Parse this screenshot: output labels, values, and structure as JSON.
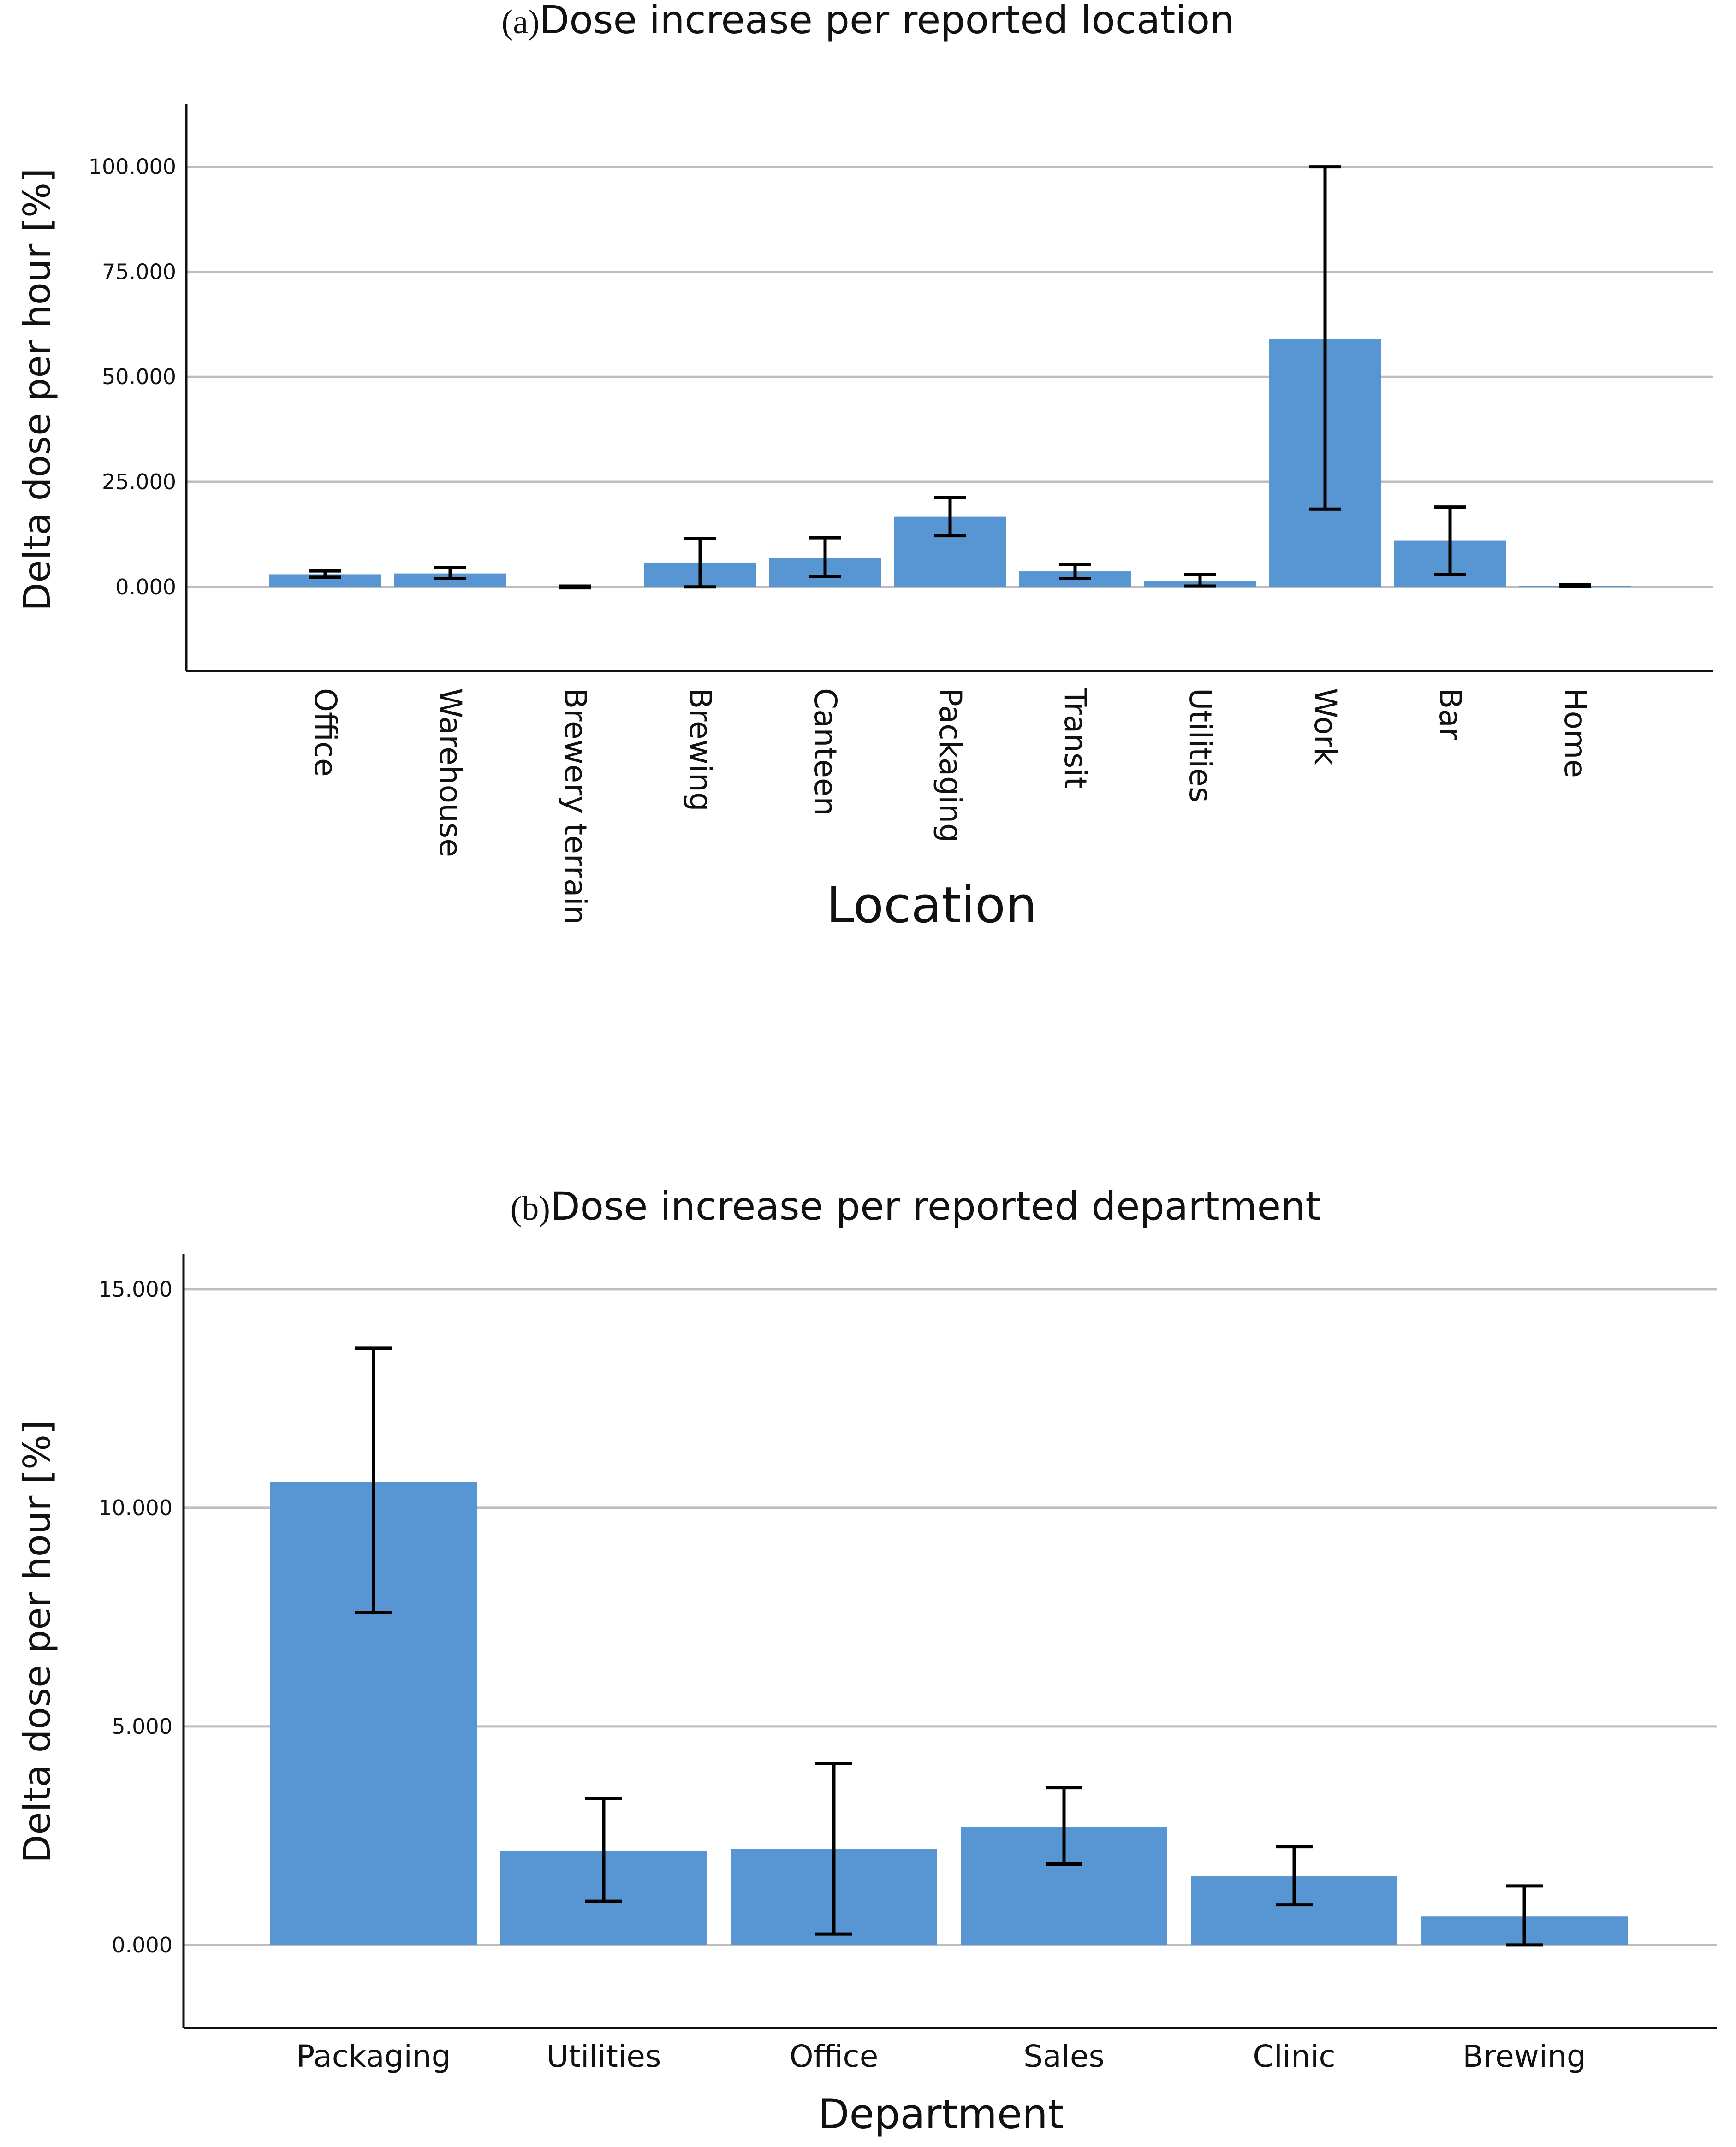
{
  "chart_data": [
    {
      "id": "a",
      "type": "bar",
      "panel_label": "(a)",
      "title": "Dose increase per reported location",
      "xlabel": "Location",
      "ylabel": "Delta dose per hour [%]",
      "ylim": [
        -20,
        115
      ],
      "yticks": [
        0,
        25,
        50,
        75,
        100
      ],
      "ytick_labels": [
        "0.000",
        "25.000",
        "50.000",
        "75.000",
        "100.000"
      ],
      "grid": true,
      "bar_color": "#5796d2",
      "categories": [
        "Office",
        "Warehouse",
        "Brewery terrain",
        "Brewing",
        "Canteen",
        "Packaging",
        "Transit",
        "Utilities",
        "Work",
        "Bar",
        "Home"
      ],
      "values": [
        3.0,
        3.2,
        0.0,
        5.8,
        7.0,
        16.7,
        3.7,
        1.5,
        59.0,
        11.0,
        0.3
      ],
      "error_low": [
        2.3,
        2.0,
        -0.2,
        0.0,
        2.5,
        12.2,
        2.0,
        0.2,
        18.5,
        3.0,
        0.1
      ],
      "error_high": [
        3.8,
        4.6,
        0.2,
        11.5,
        11.7,
        21.3,
        5.4,
        3.0,
        100.0,
        19.0,
        0.5
      ]
    },
    {
      "id": "b",
      "type": "bar",
      "panel_label": "(b)",
      "title": "Dose increase per reported department",
      "xlabel": "Department",
      "ylabel": "Delta dose per hour [%]",
      "ylim": [
        -1.9,
        15.8
      ],
      "yticks": [
        0,
        5,
        10,
        15
      ],
      "ytick_labels": [
        "0.000",
        "5.000",
        "10.000",
        "15.000"
      ],
      "grid": true,
      "bar_color": "#5796d2",
      "categories": [
        "Packaging",
        "Utilities",
        "Office",
        "Sales",
        "Clinic",
        "Brewing"
      ],
      "values": [
        10.6,
        2.15,
        2.2,
        2.7,
        1.57,
        0.65
      ],
      "error_low": [
        7.6,
        1.0,
        0.25,
        1.85,
        0.92,
        0.0
      ],
      "error_high": [
        13.65,
        3.35,
        4.15,
        3.6,
        2.25,
        1.35
      ]
    }
  ]
}
